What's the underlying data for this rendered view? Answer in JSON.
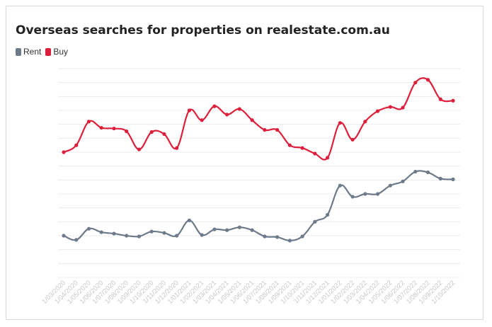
{
  "colors": {
    "rent": "#6c7a89",
    "buy": "#dc1f3a",
    "grid": "#ececec",
    "axis_text": "#c8c8c8"
  },
  "chart_data": {
    "type": "line",
    "title": "Overseas searches for properties on realestate.com.au",
    "legend_position": "top-left",
    "grid": true,
    "ylim": [
      0,
      15
    ],
    "y_ticks_labeled": false,
    "categories": [
      "1/03/2020",
      "1/04/2020",
      "1/05/2020",
      "1/06/2020",
      "1/07/2020",
      "1/08/2020",
      "1/09/2020",
      "1/10/2020",
      "1/11/2020",
      "1/12/2020",
      "1/01/2021",
      "1/02/2021",
      "1/03/2021",
      "1/04/2021",
      "1/05/2021",
      "1/06/2021",
      "1/07/2021",
      "1/08/2021",
      "1/09/2021",
      "1/10/2021",
      "1/11/2021",
      "1/12/2021",
      "1/01/2022",
      "1/02/2022",
      "1/03/2022",
      "1/04/2022",
      "1/05/2022",
      "1/06/2022",
      "1/07/2022",
      "1/08/2022",
      "1/09/2022",
      "1/10/2022"
    ],
    "series": [
      {
        "name": "Rent",
        "color": "#6c7a89",
        "values": [
          3.0,
          2.7,
          3.5,
          3.25,
          3.15,
          3.0,
          2.95,
          3.3,
          3.2,
          3.0,
          4.1,
          3.05,
          3.45,
          3.4,
          3.6,
          3.4,
          2.95,
          2.9,
          2.65,
          2.95,
          4.0,
          4.5,
          6.6,
          5.8,
          6.0,
          6.0,
          6.6,
          6.9,
          7.6,
          7.55,
          7.1,
          7.05
        ]
      },
      {
        "name": "Buy",
        "color": "#dc1f3a",
        "values": [
          9.0,
          9.5,
          11.2,
          10.75,
          10.7,
          10.5,
          9.2,
          10.45,
          10.3,
          9.3,
          12.0,
          11.3,
          12.3,
          11.7,
          12.1,
          11.3,
          10.6,
          10.6,
          9.5,
          9.3,
          8.9,
          8.6,
          11.1,
          9.9,
          11.2,
          11.95,
          12.25,
          12.2,
          14.0,
          14.2,
          12.8,
          12.7
        ]
      }
    ]
  }
}
